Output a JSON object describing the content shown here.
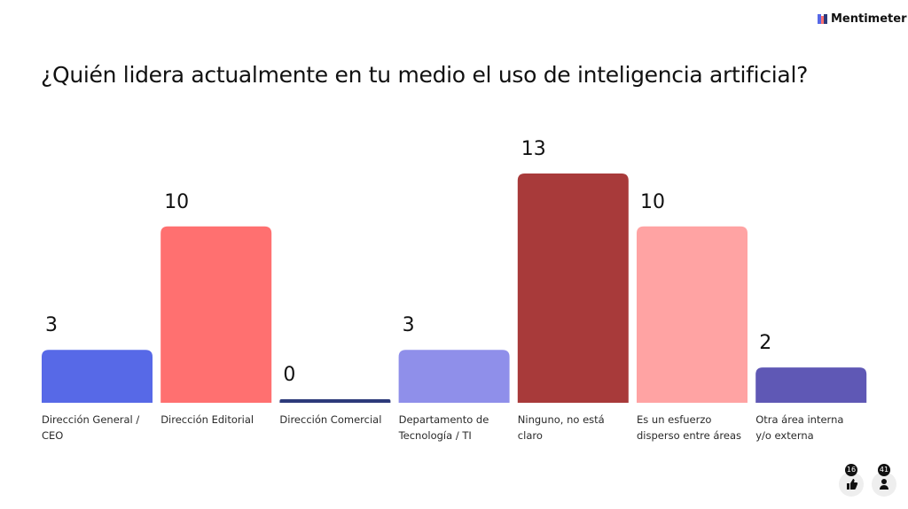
{
  "brand": "Mentimeter",
  "reactions": 16,
  "participants": 41,
  "chart_data": {
    "type": "bar",
    "title": "¿Quién lidera actualmente en tu medio el uso de inteligencia artificial?",
    "categories": [
      "Dirección General / CEO",
      "Dirección Editorial",
      "Dirección Comercial",
      "Departamento de Tecnología / TI",
      "Ninguno, no está claro",
      "Es un esfuerzo disperso entre áreas",
      "Otra área interna y/o externa"
    ],
    "values": [
      3,
      10,
      0,
      3,
      13,
      10,
      2
    ],
    "colors": [
      "#5769e7",
      "#ff7070",
      "#2d3a7a",
      "#8f8fea",
      "#a83a3a",
      "#ffa3a3",
      "#5f58b5"
    ]
  }
}
